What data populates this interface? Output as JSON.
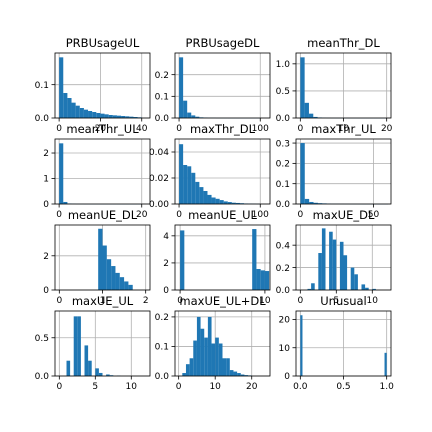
{
  "chart_data": [
    {
      "type": "bar",
      "title": "PRBUsageUL",
      "xlim": [
        -2,
        44
      ],
      "ylim": [
        0,
        0.195
      ],
      "xticks": [
        {
          "v": 0,
          "l": "0"
        },
        {
          "v": 20,
          "l": "20"
        },
        {
          "v": 40,
          "l": "40"
        }
      ],
      "yticks": [
        {
          "v": 0,
          "l": "0.0"
        },
        {
          "v": 0.1,
          "l": "0.1"
        }
      ],
      "bin_start": 0,
      "bin_width": 2,
      "values": [
        0.182,
        0.075,
        0.06,
        0.046,
        0.037,
        0.03,
        0.025,
        0.021,
        0.018,
        0.015,
        0.013,
        0.011,
        0.009,
        0.008,
        0.007,
        0.006,
        0.005,
        0.004,
        0.003,
        0.002
      ]
    },
    {
      "type": "bar",
      "title": "PRBUsageDL",
      "xlim": [
        -5,
        112
      ],
      "ylim": [
        0,
        0.3
      ],
      "xticks": [
        {
          "v": 0,
          "l": "0"
        },
        {
          "v": 100,
          "l": "100"
        }
      ],
      "yticks": [
        {
          "v": 0,
          "l": "0.0"
        },
        {
          "v": 0.1,
          "l": "0.1"
        },
        {
          "v": 0.2,
          "l": "0.2"
        }
      ],
      "bin_start": 0,
      "bin_width": 5,
      "values": [
        0.28,
        0.08,
        0.025,
        0.012,
        0.006,
        0.003,
        0.002,
        0.001,
        0.001,
        0.0005,
        0.0004,
        0.0003,
        0.0002,
        0.0002,
        0.0001,
        0.0001,
        0.0001,
        0.0001,
        0.0001,
        0.0001
      ]
    },
    {
      "type": "bar",
      "title": "meanThr_DL",
      "xlim": [
        -1,
        21
      ],
      "ylim": [
        0,
        1.2
      ],
      "xticks": [
        {
          "v": 0,
          "l": "0"
        },
        {
          "v": 10,
          "l": "10"
        },
        {
          "v": 20,
          "l": "20"
        }
      ],
      "yticks": [
        {
          "v": 0,
          "l": "0.0"
        },
        {
          "v": 0.5,
          "l": "0.5"
        },
        {
          "v": 1,
          "l": "1.0"
        }
      ],
      "bin_start": 0,
      "bin_width": 1,
      "values": [
        1.12,
        0.28,
        0.08,
        0.02,
        0.01,
        0.005,
        0.003,
        0.002,
        0.001,
        0.001,
        0.001,
        0.0005,
        0.0005,
        0.0003,
        0.0003,
        0.0002,
        0.0002,
        0.0001,
        0.0001,
        0.0001
      ]
    },
    {
      "type": "bar",
      "title": "meanThr_UL",
      "xlim": [
        -1,
        22
      ],
      "ylim": [
        0,
        2.55
      ],
      "xticks": [
        {
          "v": 0,
          "l": "0"
        },
        {
          "v": 20,
          "l": "20"
        }
      ],
      "yticks": [
        {
          "v": 0,
          "l": "0"
        },
        {
          "v": 1,
          "l": "1"
        },
        {
          "v": 2,
          "l": "2"
        }
      ],
      "bin_start": 0,
      "bin_width": 1,
      "values": [
        2.38,
        0.08,
        0.02,
        0.01,
        0.005,
        0.003,
        0.002,
        0.001,
        0.001,
        0.001,
        0.0005,
        0.0005,
        0.0003,
        0.0003,
        0.0002,
        0.0002,
        0.0001,
        0.0001,
        0.0001,
        0.0001
      ]
    },
    {
      "type": "bar",
      "title": "maxThr_DL",
      "xlim": [
        -5,
        112
      ],
      "ylim": [
        0,
        0.05
      ],
      "xticks": [
        {
          "v": 0,
          "l": "0"
        },
        {
          "v": 100,
          "l": "100"
        }
      ],
      "yticks": [
        {
          "v": 0,
          "l": "0.00"
        },
        {
          "v": 0.02,
          "l": "0.02"
        },
        {
          "v": 0.04,
          "l": "0.04"
        }
      ],
      "bin_start": 0,
      "bin_width": 5,
      "values": [
        0.046,
        0.03,
        0.029,
        0.024,
        0.017,
        0.013,
        0.01,
        0.007,
        0.005,
        0.004,
        0.003,
        0.002,
        0.0015,
        0.001,
        0.0008,
        0.0006,
        0.0004,
        0.0003,
        0.0002,
        0.0001
      ]
    },
    {
      "type": "bar",
      "title": "maxThr_UL",
      "xlim": [
        -3,
        62
      ],
      "ylim": [
        0,
        0.32
      ],
      "xticks": [
        {
          "v": 0,
          "l": "0"
        },
        {
          "v": 50,
          "l": "50"
        }
      ],
      "yticks": [
        {
          "v": 0,
          "l": "0.0"
        },
        {
          "v": 0.1,
          "l": "0.1"
        },
        {
          "v": 0.2,
          "l": "0.2"
        },
        {
          "v": 0.3,
          "l": "0.3"
        }
      ],
      "bin_start": 0,
      "bin_width": 3,
      "values": [
        0.3,
        0.025,
        0.01,
        0.006,
        0.004,
        0.003,
        0.002,
        0.001,
        0.001,
        0.0008,
        0.0006,
        0.0005,
        0.0004,
        0.0003,
        0.0002,
        0.0002,
        0.0001,
        0.0001,
        0.0001,
        0.0001
      ]
    },
    {
      "type": "bar",
      "title": "meanUE_DL",
      "xlim": [
        -0.1,
        2.1
      ],
      "ylim": [
        0,
        3.8
      ],
      "xticks": [
        {
          "v": 0,
          "l": "0"
        },
        {
          "v": 1,
          "l": "1"
        },
        {
          "v": 2,
          "l": "2"
        }
      ],
      "yticks": [
        {
          "v": 0,
          "l": "0"
        },
        {
          "v": 2,
          "l": "2"
        }
      ],
      "bin_start": 0.9,
      "bin_width": 0.1,
      "values": [
        3.58,
        2.6,
        1.8,
        1.4,
        1.0,
        0.75,
        0.5,
        0.3
      ]
    },
    {
      "type": "bar",
      "title": "meanUE_UL",
      "xlim": [
        -0.6,
        10.6
      ],
      "ylim": [
        0,
        4.8
      ],
      "xticks": [
        {
          "v": 0,
          "l": "0"
        },
        {
          "v": 10,
          "l": "10"
        }
      ],
      "yticks": [
        {
          "v": 0,
          "l": "0"
        },
        {
          "v": 2,
          "l": "2"
        },
        {
          "v": 4,
          "l": "4"
        }
      ],
      "bin_start": 0,
      "bin_width": 0.5,
      "values": [
        4.4,
        0,
        0,
        0,
        0,
        0,
        0,
        0,
        0,
        0,
        0,
        0,
        0,
        0,
        0,
        0,
        0,
        4.5,
        1.55,
        1.45,
        1.4
      ]
    },
    {
      "type": "bar",
      "title": "maxUE_DL",
      "xlim": [
        -0.6,
        12.6
      ],
      "ylim": [
        0,
        0.58
      ],
      "xticks": [
        {
          "v": 0,
          "l": "0"
        },
        {
          "v": 5,
          "l": "5"
        },
        {
          "v": 10,
          "l": "10"
        }
      ],
      "yticks": [
        {
          "v": 0,
          "l": "0.0"
        },
        {
          "v": 0.2,
          "l": "0.2"
        },
        {
          "v": 0.4,
          "l": "0.4"
        }
      ],
      "bin_start": 0,
      "bin_width": 0.5,
      "values": [
        0,
        0,
        0.01,
        0.06,
        0,
        0.33,
        0.55,
        0,
        0.52,
        0.45,
        0,
        0.43,
        0.31,
        0,
        0.2,
        0.14,
        0,
        0.05,
        0.02,
        0,
        0.01
      ]
    },
    {
      "type": "bar",
      "title": "maxUE_UL",
      "xlim": [
        -0.6,
        12.6
      ],
      "ylim": [
        0,
        0.85
      ],
      "xticks": [
        {
          "v": 0,
          "l": "0"
        },
        {
          "v": 5,
          "l": "5"
        },
        {
          "v": 10,
          "l": "10"
        }
      ],
      "yticks": [
        {
          "v": 0,
          "l": "0.0"
        },
        {
          "v": 0.5,
          "l": "0.5"
        }
      ],
      "bin_start": 1,
      "bin_width": 0.5,
      "values": [
        0.2,
        0,
        0.78,
        0.78,
        0,
        0.4,
        0.2,
        0,
        0.1,
        0.04,
        0,
        0.02,
        0.01,
        0,
        0.005
      ]
    },
    {
      "type": "bar",
      "title": "maxUE_UL+DL",
      "xlim": [
        -1,
        25
      ],
      "ylim": [
        0,
        0.22
      ],
      "xticks": [
        {
          "v": 0,
          "l": "0"
        },
        {
          "v": 10,
          "l": "10"
        },
        {
          "v": 20,
          "l": "20"
        }
      ],
      "yticks": [
        {
          "v": 0,
          "l": "0.0"
        },
        {
          "v": 0.1,
          "l": "0.1"
        },
        {
          "v": 0.2,
          "l": "0.2"
        }
      ],
      "bin_start": 0,
      "bin_width": 1,
      "values": [
        0,
        0.01,
        0.04,
        0.06,
        0.12,
        0.2,
        0.16,
        0.13,
        0.2,
        0.11,
        0.13,
        0.11,
        0.06,
        0.06,
        0.02,
        0.015,
        0.01,
        0.005,
        0.003,
        0.002
      ]
    },
    {
      "type": "bar",
      "title": "Unusual",
      "xlim": [
        -0.05,
        1.05
      ],
      "ylim": [
        0,
        23
      ],
      "xticks": [
        {
          "v": 0,
          "l": "0.0"
        },
        {
          "v": 0.5,
          "l": "0.5"
        },
        {
          "v": 1,
          "l": "1.0"
        }
      ],
      "yticks": [
        {
          "v": 0,
          "l": "0"
        },
        {
          "v": 10,
          "l": "10"
        },
        {
          "v": 20,
          "l": "20"
        }
      ],
      "bin_start": 0,
      "bin_width": 0.025,
      "values": [
        21.5,
        0,
        0,
        0,
        0,
        0,
        0,
        0,
        0,
        0,
        0,
        0,
        0,
        0,
        0,
        0,
        0,
        0,
        0,
        0,
        0,
        0,
        0,
        0,
        0,
        0,
        0,
        0,
        0,
        0,
        0,
        0,
        0,
        0,
        0,
        0,
        0,
        0,
        0,
        8.2
      ]
    }
  ]
}
